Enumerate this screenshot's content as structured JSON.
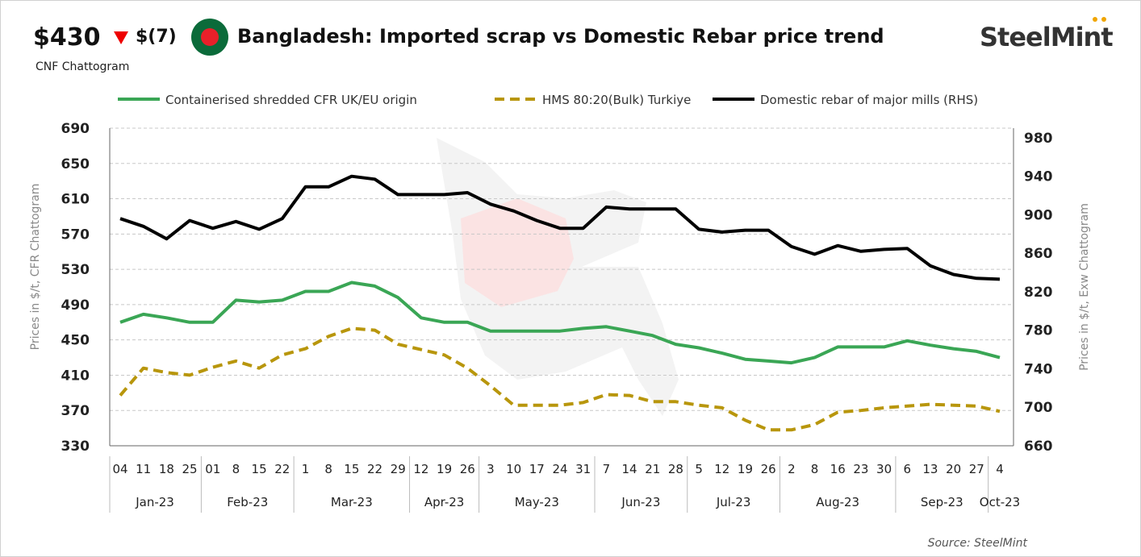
{
  "header": {
    "price": "$430",
    "change": "$(7)",
    "change_direction": "down",
    "subtitle": "CNF Chattogram",
    "title": "Bangladesh: Imported scrap vs Domestic Rebar price trend",
    "logo": "SteelMint",
    "source": "Source: SteelMint"
  },
  "colors": {
    "green": "#3aa655",
    "gold": "#b8960c",
    "black": "#000000",
    "down": "#e00000"
  },
  "chart_data": {
    "type": "line",
    "x": [
      "04",
      "11",
      "18",
      "25",
      "01",
      "8",
      "15",
      "22",
      "1",
      "8",
      "15",
      "22",
      "29",
      "12",
      "19",
      "26",
      "3",
      "10",
      "17",
      "24",
      "31",
      "7",
      "14",
      "21",
      "28",
      "5",
      "12",
      "19",
      "26",
      "2",
      "8",
      "16",
      "23",
      "30",
      "6",
      "13",
      "20",
      "27",
      "4"
    ],
    "months": [
      {
        "label": "Jan-23",
        "count": 4
      },
      {
        "label": "Feb-23",
        "count": 4
      },
      {
        "label": "Mar-23",
        "count": 5
      },
      {
        "label": "Apr-23",
        "count": 3
      },
      {
        "label": "May-23",
        "count": 5
      },
      {
        "label": "Jun-23",
        "count": 4
      },
      {
        "label": "Jul-23",
        "count": 4
      },
      {
        "label": "Aug-23",
        "count": 5
      },
      {
        "label": "Sep-23",
        "count": 4
      },
      {
        "label": "Oct-23",
        "count": 1
      }
    ],
    "ylabel": "Prices in $/t, CFR Chattogram",
    "y2label": "Prices in $/t, Exw Chattogram",
    "ylim": [
      330,
      690
    ],
    "yticks": [
      690,
      650,
      610,
      570,
      530,
      490,
      450,
      410,
      370,
      330
    ],
    "y2lim": [
      660,
      990
    ],
    "y2ticks": [
      980,
      940,
      900,
      860,
      820,
      780,
      740,
      700,
      660
    ],
    "grid": true,
    "legend": "top",
    "series": [
      {
        "name": "Containerised shredded CFR UK/EU origin",
        "axis": "left",
        "style": "solid",
        "color": "#3aa655",
        "values": [
          470,
          479,
          475,
          470,
          470,
          495,
          493,
          495,
          505,
          505,
          515,
          511,
          498,
          475,
          470,
          470,
          460,
          460,
          460,
          460,
          463,
          465,
          460,
          455,
          445,
          441,
          435,
          428,
          426,
          424,
          430,
          442,
          442,
          442,
          449,
          444,
          440,
          437,
          430
        ]
      },
      {
        "name": "HMS 80:20(Bulk) Turkiye",
        "axis": "left",
        "style": "dashed",
        "color": "#b8960c",
        "values": [
          387,
          418,
          413,
          410,
          419,
          426,
          418,
          433,
          440,
          454,
          463,
          461,
          445,
          439,
          433,
          418,
          398,
          376,
          376,
          376,
          379,
          388,
          387,
          380,
          380,
          376,
          373,
          359,
          348,
          348,
          354,
          368,
          370,
          373,
          375,
          377,
          376,
          375,
          369
        ]
      },
      {
        "name": "Domestic rebar of major mills (RHS)",
        "axis": "right",
        "style": "solid",
        "color": "#000000",
        "values": [
          896,
          888,
          875,
          894,
          886,
          893,
          885,
          896,
          929,
          929,
          940,
          937,
          921,
          921,
          921,
          923,
          911,
          904,
          894,
          886,
          886,
          908,
          906,
          906,
          906,
          885,
          882,
          884,
          884,
          867,
          859,
          868,
          862,
          864,
          865,
          847,
          838,
          834,
          833
        ]
      }
    ]
  }
}
